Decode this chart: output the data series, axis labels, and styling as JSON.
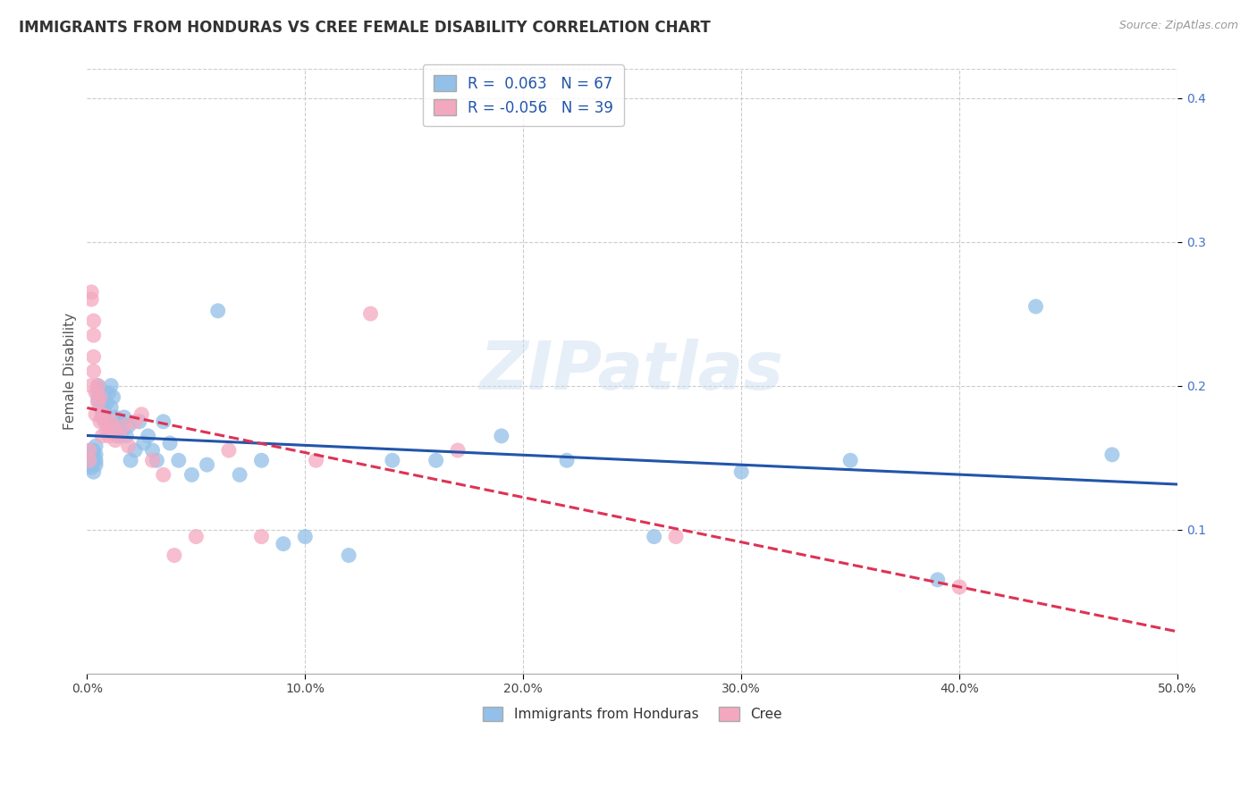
{
  "title": "IMMIGRANTS FROM HONDURAS VS CREE FEMALE DISABILITY CORRELATION CHART",
  "source": "Source: ZipAtlas.com",
  "ylabel": "Female Disability",
  "xlim": [
    0,
    0.5
  ],
  "ylim": [
    0,
    0.42
  ],
  "xticks": [
    0.0,
    0.1,
    0.2,
    0.3,
    0.4,
    0.5
  ],
  "xtick_labels": [
    "0.0%",
    "10.0%",
    "20.0%",
    "30.0%",
    "40.0%",
    "50.0%"
  ],
  "yticks": [
    0.1,
    0.2,
    0.3,
    0.4
  ],
  "ytick_labels": [
    "10.0%",
    "20.0%",
    "30.0%",
    "40.0%"
  ],
  "legend_entries": [
    "Immigrants from Honduras",
    "Cree"
  ],
  "R_blue": 0.063,
  "N_blue": 67,
  "R_pink": -0.056,
  "N_pink": 39,
  "blue_color": "#92C0E8",
  "pink_color": "#F4A8C0",
  "blue_line_color": "#2255AA",
  "pink_line_color": "#DD3355",
  "watermark_text": "ZIPatlas",
  "background_color": "#FFFFFF",
  "grid_color": "#CCCCCC",
  "title_fontsize": 12,
  "axis_label_fontsize": 11,
  "tick_fontsize": 10,
  "tick_color_x": "#444444",
  "tick_color_y": "#4472C4",
  "blue_x": [
    0.001,
    0.001,
    0.001,
    0.002,
    0.002,
    0.002,
    0.002,
    0.003,
    0.003,
    0.003,
    0.003,
    0.004,
    0.004,
    0.004,
    0.004,
    0.005,
    0.005,
    0.005,
    0.006,
    0.006,
    0.006,
    0.007,
    0.007,
    0.008,
    0.008,
    0.009,
    0.009,
    0.01,
    0.01,
    0.011,
    0.011,
    0.012,
    0.013,
    0.014,
    0.015,
    0.016,
    0.017,
    0.018,
    0.019,
    0.02,
    0.022,
    0.024,
    0.026,
    0.028,
    0.03,
    0.032,
    0.035,
    0.038,
    0.042,
    0.048,
    0.055,
    0.06,
    0.07,
    0.08,
    0.09,
    0.1,
    0.12,
    0.14,
    0.16,
    0.19,
    0.22,
    0.26,
    0.3,
    0.35,
    0.39,
    0.435,
    0.47
  ],
  "blue_y": [
    0.148,
    0.152,
    0.145,
    0.15,
    0.143,
    0.155,
    0.147,
    0.148,
    0.155,
    0.14,
    0.152,
    0.148,
    0.145,
    0.152,
    0.158,
    0.195,
    0.2,
    0.19,
    0.195,
    0.185,
    0.198,
    0.178,
    0.192,
    0.182,
    0.195,
    0.175,
    0.188,
    0.195,
    0.17,
    0.2,
    0.185,
    0.192,
    0.178,
    0.165,
    0.175,
    0.168,
    0.178,
    0.165,
    0.172,
    0.148,
    0.155,
    0.175,
    0.16,
    0.165,
    0.155,
    0.148,
    0.175,
    0.16,
    0.148,
    0.138,
    0.145,
    0.252,
    0.138,
    0.148,
    0.09,
    0.095,
    0.082,
    0.148,
    0.148,
    0.165,
    0.148,
    0.095,
    0.14,
    0.148,
    0.065,
    0.255,
    0.152
  ],
  "pink_x": [
    0.001,
    0.001,
    0.002,
    0.002,
    0.002,
    0.003,
    0.003,
    0.003,
    0.003,
    0.004,
    0.004,
    0.005,
    0.005,
    0.006,
    0.006,
    0.007,
    0.007,
    0.008,
    0.009,
    0.01,
    0.011,
    0.012,
    0.013,
    0.015,
    0.017,
    0.019,
    0.022,
    0.025,
    0.03,
    0.035,
    0.04,
    0.05,
    0.065,
    0.08,
    0.105,
    0.13,
    0.17,
    0.27,
    0.4
  ],
  "pink_y": [
    0.155,
    0.148,
    0.2,
    0.26,
    0.265,
    0.245,
    0.235,
    0.22,
    0.21,
    0.195,
    0.18,
    0.2,
    0.188,
    0.175,
    0.192,
    0.18,
    0.165,
    0.175,
    0.168,
    0.165,
    0.175,
    0.17,
    0.162,
    0.165,
    0.172,
    0.158,
    0.175,
    0.18,
    0.148,
    0.138,
    0.082,
    0.095,
    0.155,
    0.095,
    0.148,
    0.25,
    0.155,
    0.095,
    0.06
  ]
}
